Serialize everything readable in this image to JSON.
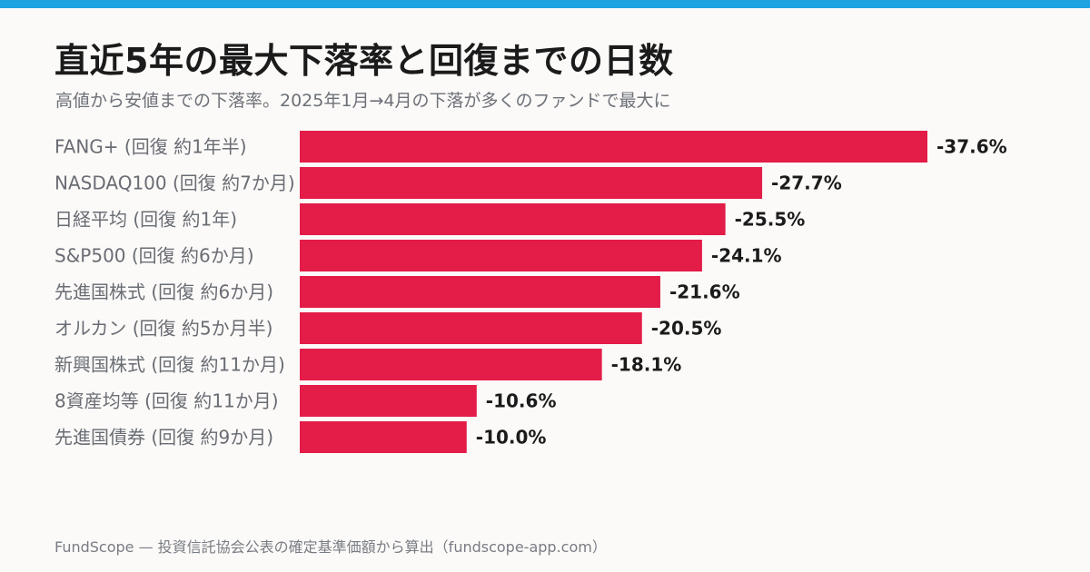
{
  "colors": {
    "accent_top": "#1fa2e0",
    "bar": "#e31c48"
  },
  "title": "直近5年の最大下落率と回復までの日数",
  "subtitle": "高値から安値までの下落率。2025年1月→4月の下落が多くのファンドで最大に",
  "footer": "FundScope — 投資信託協会公表の確定基準価額から算出（fundscope-app.com）",
  "chart_data": {
    "type": "bar",
    "orientation": "horizontal",
    "title": "直近5年の最大下落率と回復までの日数",
    "subtitle": "高値から安値までの下落率。2025年1月→4月の下落が多くのファンドで最大に",
    "categories": [
      "FANG+ (回復 約1年半)",
      "NASDAQ100 (回復 約7か月)",
      "日経平均 (回復 約1年)",
      "S&P500 (回復 約6か月)",
      "先進国株式 (回復 約6か月)",
      "オルカン (回復 約5か月半)",
      "新興国株式 (回復 約11か月)",
      "8資産均等 (回復 約11か月)",
      "先進国債券 (回復 約9か月)"
    ],
    "values": [
      -37.6,
      -27.7,
      -25.5,
      -24.1,
      -21.6,
      -20.5,
      -18.1,
      -10.6,
      -10.0
    ],
    "value_labels": [
      "-37.6%",
      "-27.7%",
      "-25.5%",
      "-24.1%",
      "-21.6%",
      "-20.5%",
      "-18.1%",
      "-10.6%",
      "-10.0%"
    ],
    "unit": "%",
    "legend": "none",
    "grid": false
  }
}
